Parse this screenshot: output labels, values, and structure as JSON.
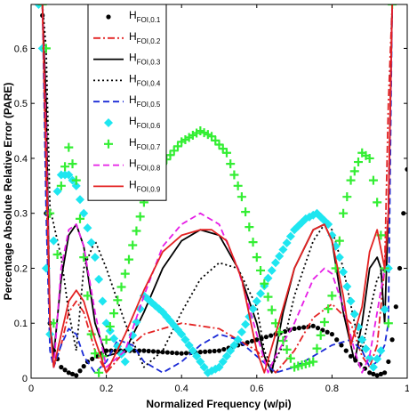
{
  "chart_data": {
    "type": "line",
    "title": "",
    "xlabel": "Normalized Frequency (w/pi)",
    "ylabel": "Percentage Absolute Relative Error (PARE)",
    "xlim": [
      0,
      1
    ],
    "ylim": [
      0,
      0.68
    ],
    "xticks": [
      "0",
      "0.2",
      "0.4",
      "0.6",
      "0.8",
      "1"
    ],
    "yticks": [
      "0",
      "0.1",
      "0.2",
      "0.3",
      "0.4",
      "0.5",
      "0.6"
    ],
    "grid": false,
    "legend_position": "top-left",
    "series": [
      {
        "name": "H",
        "sub": "FOI,0.1",
        "color": "#000000",
        "style": "dots",
        "x": [
          0.03,
          0.04,
          0.05,
          0.06,
          0.08,
          0.1,
          0.12,
          0.15,
          0.2,
          0.3,
          0.4,
          0.5,
          0.6,
          0.7,
          0.75,
          0.8,
          0.85,
          0.9,
          0.92,
          0.94,
          0.95,
          0.96,
          0.97,
          0.98,
          0.99,
          1.0
        ],
        "y": [
          0.66,
          0.3,
          0.1,
          0.05,
          0.02,
          0.01,
          0.005,
          0.03,
          0.05,
          0.05,
          0.045,
          0.05,
          0.07,
          0.09,
          0.095,
          0.08,
          0.04,
          0.01,
          0.005,
          0.01,
          0.03,
          0.07,
          0.13,
          0.2,
          0.3,
          0.38
        ]
      },
      {
        "name": "H",
        "sub": "FOI,0.2",
        "color": "#e32222",
        "style": "dashdot",
        "x": [
          0.03,
          0.04,
          0.05,
          0.06,
          0.08,
          0.1,
          0.12,
          0.14,
          0.17,
          0.2,
          0.25,
          0.3,
          0.4,
          0.5,
          0.6,
          0.65,
          0.7,
          0.75,
          0.8,
          0.85,
          0.88,
          0.9,
          0.92,
          0.94,
          0.95,
          0.96
        ],
        "y": [
          0.68,
          0.35,
          0.1,
          0.02,
          0.06,
          0.12,
          0.14,
          0.12,
          0.05,
          0.01,
          0.05,
          0.08,
          0.1,
          0.09,
          0.05,
          0.01,
          0.05,
          0.11,
          0.135,
          0.1,
          0.04,
          0.02,
          0.06,
          0.2,
          0.5,
          0.68
        ]
      },
      {
        "name": "H",
        "sub": "FOI,0.3",
        "color": "#000000",
        "style": "solid",
        "x": [
          0.03,
          0.04,
          0.05,
          0.06,
          0.08,
          0.1,
          0.12,
          0.14,
          0.17,
          0.2,
          0.25,
          0.3,
          0.35,
          0.4,
          0.45,
          0.5,
          0.55,
          0.6,
          0.62,
          0.64,
          0.67,
          0.7,
          0.75,
          0.78,
          0.8,
          0.83,
          0.86,
          0.88,
          0.9,
          0.92,
          0.93,
          0.94,
          0.95,
          0.96
        ],
        "y": [
          0.68,
          0.5,
          0.1,
          0.04,
          0.18,
          0.26,
          0.28,
          0.24,
          0.1,
          0.04,
          0.05,
          0.12,
          0.2,
          0.25,
          0.27,
          0.26,
          0.2,
          0.1,
          0.04,
          0.01,
          0.12,
          0.2,
          0.27,
          0.28,
          0.25,
          0.12,
          0.03,
          0.1,
          0.2,
          0.22,
          0.2,
          0.1,
          0.3,
          0.68
        ]
      },
      {
        "name": "H",
        "sub": "FOI,0.4",
        "color": "#000000",
        "style": "dotted",
        "x": [
          0.03,
          0.04,
          0.05,
          0.06,
          0.08,
          0.1,
          0.12,
          0.14,
          0.17,
          0.2,
          0.25,
          0.3,
          0.35,
          0.4,
          0.45,
          0.5,
          0.55,
          0.6,
          0.62,
          0.64,
          0.67,
          0.7,
          0.75,
          0.78,
          0.8,
          0.83,
          0.86,
          0.88,
          0.9,
          0.92,
          0.94,
          0.95,
          0.96
        ],
        "y": [
          0.68,
          0.6,
          0.31,
          0.28,
          0.22,
          0.12,
          0.05,
          0.2,
          0.25,
          0.2,
          0.1,
          0.02,
          0.05,
          0.12,
          0.18,
          0.21,
          0.2,
          0.13,
          0.05,
          0.02,
          0.06,
          0.15,
          0.25,
          0.28,
          0.27,
          0.2,
          0.1,
          0.05,
          0.12,
          0.18,
          0.2,
          0.3,
          0.68
        ]
      },
      {
        "name": "H",
        "sub": "FOI,0.5",
        "color": "#1a2ad6",
        "style": "dashed",
        "x": [
          0.03,
          0.04,
          0.05,
          0.06,
          0.08,
          0.1,
          0.12,
          0.14,
          0.17,
          0.2,
          0.23,
          0.27,
          0.3,
          0.35,
          0.4,
          0.45,
          0.5,
          0.55,
          0.6,
          0.65,
          0.7,
          0.75,
          0.8,
          0.85,
          0.88,
          0.9,
          0.92,
          0.94,
          0.95,
          0.96
        ],
        "y": [
          0.68,
          0.3,
          0.05,
          0.02,
          0.06,
          0.09,
          0.08,
          0.04,
          0.01,
          0.03,
          0.07,
          0.06,
          0.03,
          0.01,
          0.03,
          0.06,
          0.08,
          0.07,
          0.04,
          0.01,
          0.02,
          0.04,
          0.06,
          0.07,
          0.05,
          0.02,
          0.03,
          0.06,
          0.1,
          0.68
        ]
      },
      {
        "name": "H",
        "sub": "FOI,0.6",
        "color": "#1ee6f0",
        "style": "diamonds",
        "x": [
          0.02,
          0.03,
          0.04,
          0.05,
          0.06,
          0.07,
          0.08,
          0.1,
          0.12,
          0.14,
          0.17,
          0.2,
          0.25,
          0.3,
          0.35,
          0.4,
          0.44,
          0.47,
          0.5,
          0.55,
          0.6,
          0.65,
          0.7,
          0.73,
          0.76,
          0.79,
          0.82,
          0.85,
          0.88,
          0.91,
          0.93,
          0.95
        ],
        "y": [
          0.68,
          0.6,
          0.2,
          0.08,
          0.25,
          0.34,
          0.37,
          0.37,
          0.35,
          0.3,
          0.22,
          0.1,
          0.03,
          0.15,
          0.12,
          0.08,
          0.04,
          0.01,
          0.02,
          0.07,
          0.14,
          0.21,
          0.27,
          0.29,
          0.3,
          0.28,
          0.22,
          0.14,
          0.07,
          0.02,
          0.05,
          0.2
        ]
      },
      {
        "name": "H",
        "sub": "FOI,0.7",
        "color": "#33ee33",
        "style": "plus",
        "x": [
          0.03,
          0.04,
          0.05,
          0.06,
          0.08,
          0.1,
          0.12,
          0.14,
          0.16,
          0.18,
          0.2,
          0.25,
          0.3,
          0.35,
          0.4,
          0.45,
          0.48,
          0.52,
          0.56,
          0.6,
          0.65,
          0.7,
          0.75,
          0.8,
          0.83,
          0.85,
          0.88,
          0.9,
          0.92,
          0.94,
          0.95,
          0.96
        ],
        "y": [
          0.68,
          0.6,
          0.3,
          0.1,
          0.35,
          0.42,
          0.36,
          0.22,
          0.08,
          0.01,
          0.07,
          0.19,
          0.32,
          0.39,
          0.43,
          0.45,
          0.44,
          0.41,
          0.33,
          0.22,
          0.1,
          0.02,
          0.03,
          0.15,
          0.3,
          0.36,
          0.41,
          0.4,
          0.32,
          0.2,
          0.1,
          0.68
        ]
      },
      {
        "name": "H",
        "sub": "FOI,0.8",
        "color": "#e61ee6",
        "style": "dashed",
        "x": [
          0.03,
          0.04,
          0.05,
          0.06,
          0.08,
          0.1,
          0.12,
          0.14,
          0.17,
          0.2,
          0.25,
          0.3,
          0.35,
          0.4,
          0.45,
          0.5,
          0.55,
          0.6,
          0.63,
          0.65,
          0.7,
          0.75,
          0.78,
          0.8,
          0.83,
          0.86,
          0.88,
          0.9,
          0.92,
          0.94,
          0.95,
          0.96
        ],
        "y": [
          0.68,
          0.45,
          0.1,
          0.02,
          0.2,
          0.27,
          0.28,
          0.24,
          0.12,
          0.02,
          0.05,
          0.15,
          0.24,
          0.28,
          0.3,
          0.28,
          0.2,
          0.08,
          0.01,
          0.04,
          0.1,
          0.18,
          0.2,
          0.19,
          0.13,
          0.05,
          0.01,
          0.04,
          0.12,
          0.2,
          0.3,
          0.68
        ]
      },
      {
        "name": "H",
        "sub": "FOI,0.9",
        "color": "#e32222",
        "style": "solid",
        "x": [
          0.03,
          0.04,
          0.05,
          0.06,
          0.08,
          0.1,
          0.12,
          0.14,
          0.17,
          0.2,
          0.25,
          0.3,
          0.35,
          0.4,
          0.45,
          0.48,
          0.52,
          0.56,
          0.6,
          0.62,
          0.65,
          0.7,
          0.75,
          0.78,
          0.8,
          0.83,
          0.85,
          0.88,
          0.9,
          0.92,
          0.94,
          0.95,
          0.96
        ],
        "y": [
          0.68,
          0.4,
          0.1,
          0.02,
          0.08,
          0.14,
          0.16,
          0.14,
          0.07,
          0.01,
          0.08,
          0.16,
          0.23,
          0.26,
          0.27,
          0.27,
          0.25,
          0.18,
          0.05,
          0.01,
          0.08,
          0.2,
          0.27,
          0.28,
          0.25,
          0.15,
          0.06,
          0.13,
          0.23,
          0.27,
          0.2,
          0.3,
          0.68
        ]
      }
    ]
  }
}
